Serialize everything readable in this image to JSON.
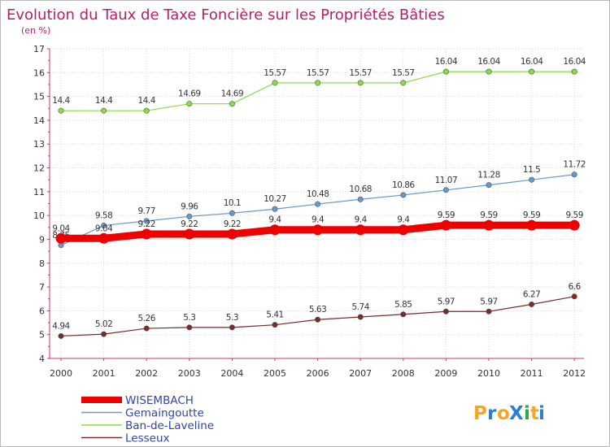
{
  "chart_data": {
    "type": "line",
    "title": "Evolution du Taux de Taxe Foncière sur les Propriétés Bâties",
    "ylabel": "(en %)",
    "xlabel": "",
    "ylim": [
      4,
      17
    ],
    "yticks": [
      "4",
      "5",
      "6",
      "7",
      "8",
      "9",
      "10",
      "11",
      "12",
      "13",
      "14",
      "15",
      "16",
      "17"
    ],
    "categories": [
      "2000",
      "2001",
      "2002",
      "2003",
      "2004",
      "2005",
      "2006",
      "2007",
      "2008",
      "2009",
      "2010",
      "2011",
      "2012"
    ],
    "grid": true,
    "series": [
      {
        "name": "WISEMBACH",
        "color": "#ee0000",
        "values": [
          9.04,
          9.04,
          9.22,
          9.22,
          9.22,
          9.4,
          9.4,
          9.4,
          9.4,
          9.59,
          9.59,
          9.59,
          9.59
        ],
        "labels": [
          "9.04",
          "9.04",
          "9.22",
          "9.22",
          "9.22",
          "9.4",
          "9.4",
          "9.4",
          "9.4",
          "9.59",
          "9.59",
          "9.59",
          "9.59"
        ]
      },
      {
        "name": "Gemaingoutte",
        "color": "#6699cc",
        "values": [
          8.75,
          9.58,
          9.77,
          9.96,
          10.1,
          10.27,
          10.48,
          10.68,
          10.86,
          11.07,
          11.28,
          11.5,
          11.72
        ],
        "labels": [
          "8.75",
          "9.58",
          "9.77",
          "9.96",
          "10.1",
          "10.27",
          "10.48",
          "10.68",
          "10.86",
          "11.07",
          "11.28",
          "11.5",
          "11.72"
        ]
      },
      {
        "name": "Ban-de-Laveline",
        "color": "#88dd44",
        "values": [
          14.4,
          14.4,
          14.4,
          14.69,
          14.69,
          15.57,
          15.57,
          15.57,
          15.57,
          16.04,
          16.04,
          16.04,
          16.04
        ],
        "labels": [
          "14.4",
          "14.4",
          "14.4",
          "14.69",
          "14.69",
          "15.57",
          "15.57",
          "15.57",
          "15.57",
          "16.04",
          "16.04",
          "16.04",
          "16.04"
        ]
      },
      {
        "name": "Lesseux",
        "color": "#7a2a2a",
        "values": [
          4.94,
          5.02,
          5.26,
          5.3,
          5.3,
          5.41,
          5.63,
          5.74,
          5.85,
          5.97,
          5.97,
          6.27,
          6.6
        ],
        "labels": [
          "4.94",
          "5.02",
          "5.26",
          "5.3",
          "5.3",
          "5.41",
          "5.63",
          "5.74",
          "5.85",
          "5.97",
          "5.97",
          "6.27",
          "6.6"
        ]
      }
    ],
    "legend": {
      "position": "bottom-left"
    }
  },
  "logo": {
    "text": "ProXiti",
    "letters": [
      "P",
      "r",
      "o",
      "X",
      "i",
      "t",
      "i"
    ],
    "colors": [
      "#f5a623",
      "#2a7fd4",
      "#f5a623",
      "#2a7fd4",
      "#2aa84a",
      "#f5a623",
      "#2a7fd4"
    ]
  }
}
